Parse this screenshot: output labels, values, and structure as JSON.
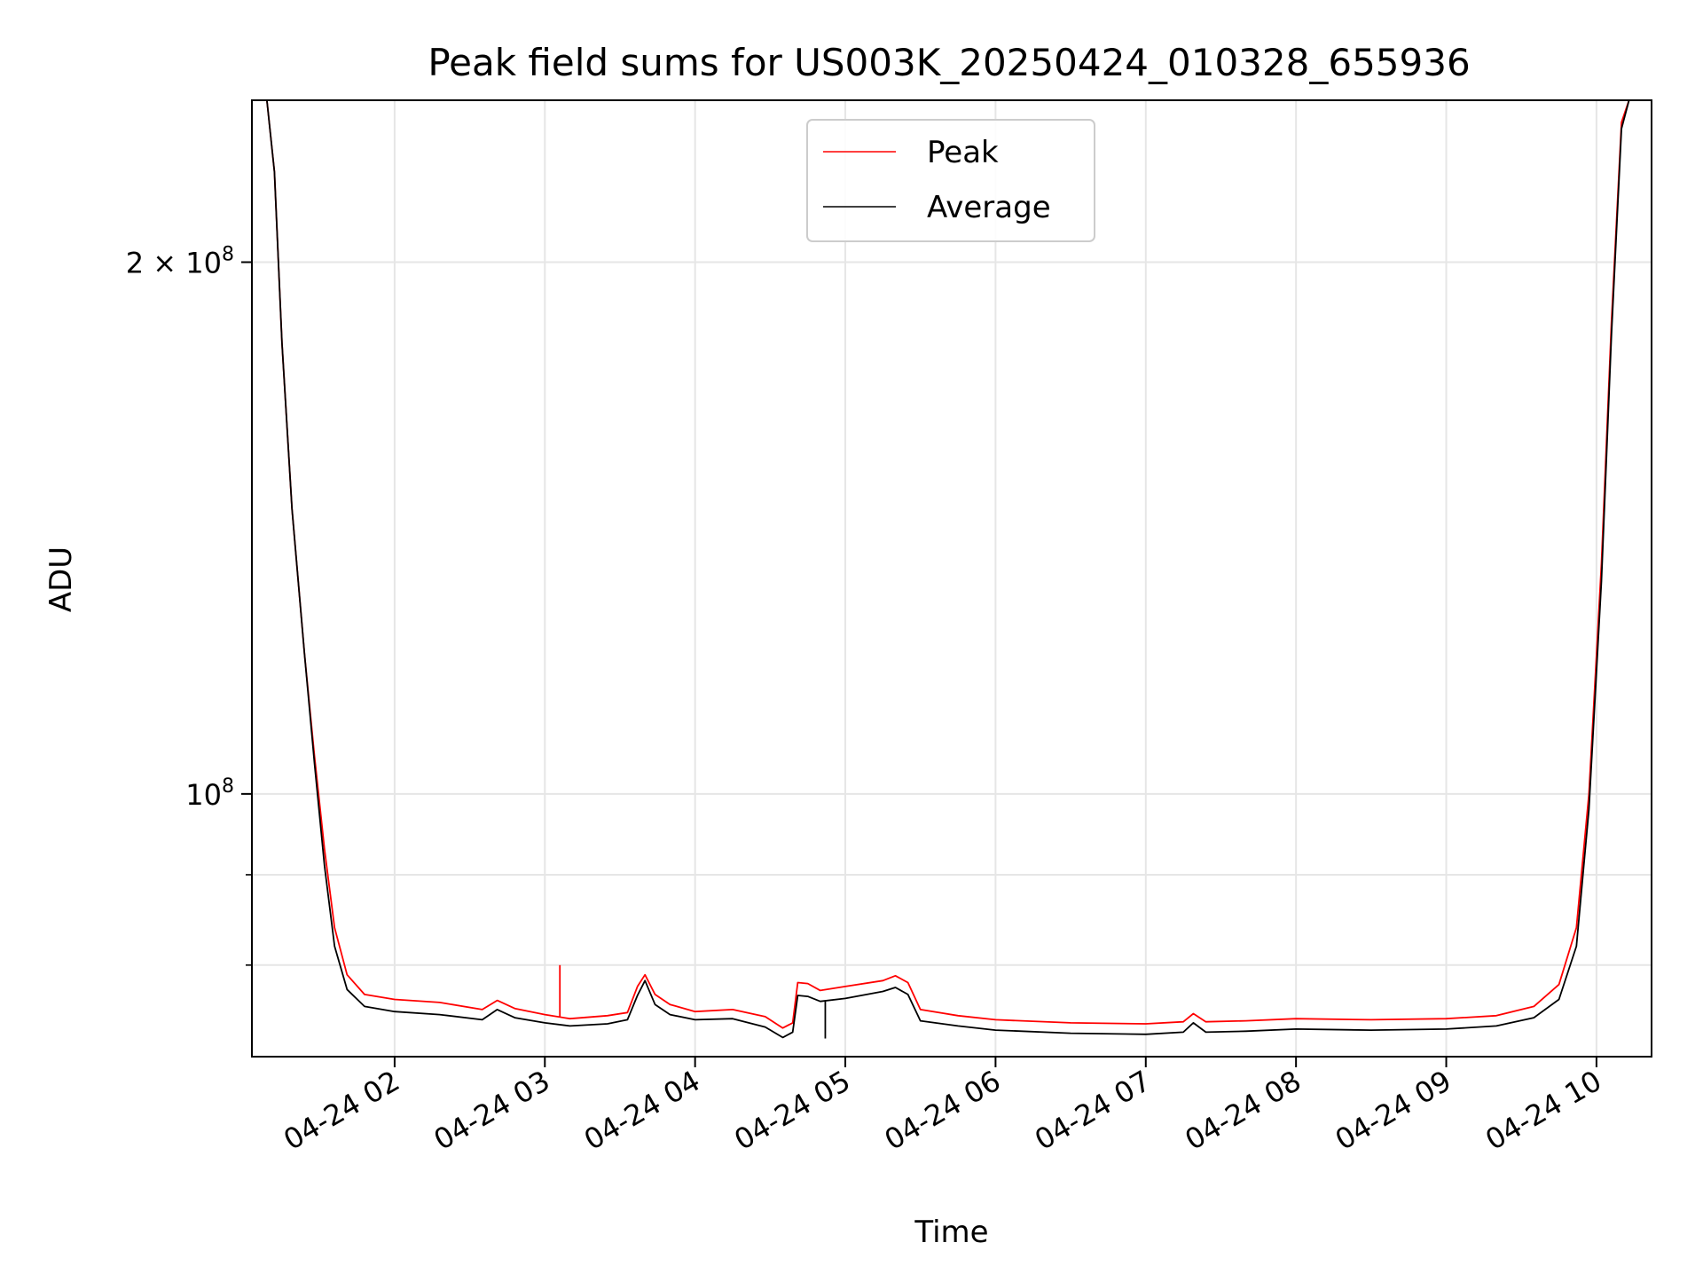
{
  "chart_data": {
    "type": "line",
    "title": "Peak field sums for US003K_20250424_010328_655936",
    "xlabel": "Time",
    "ylabel": "ADU",
    "y_scale": "log",
    "ylim": [
      71000000,
      247000000
    ],
    "xlim": [
      "04-24 01:03",
      "04-24 10:22"
    ],
    "grid": true,
    "legend_placement": "upper center",
    "x_ticks": [
      {
        "value": "04-24 02:00",
        "label": "04-24 02"
      },
      {
        "value": "04-24 03:00",
        "label": "04-24 03"
      },
      {
        "value": "04-24 04:00",
        "label": "04-24 04"
      },
      {
        "value": "04-24 05:00",
        "label": "04-24 05"
      },
      {
        "value": "04-24 06:00",
        "label": "04-24 06"
      },
      {
        "value": "04-24 07:00",
        "label": "04-24 07"
      },
      {
        "value": "04-24 08:00",
        "label": "04-24 08"
      },
      {
        "value": "04-24 09:00",
        "label": "04-24 09"
      },
      {
        "value": "04-24 10:00",
        "label": "04-24 10"
      }
    ],
    "y_ticks": [
      {
        "value": 200000000,
        "base": "2 × 10",
        "exp": "8"
      },
      {
        "value": 100000000,
        "base": "10",
        "exp": "8"
      }
    ],
    "y_minor_ticks": [
      90000000,
      80000000
    ],
    "series": [
      {
        "name": "Peak",
        "color": "#ff0000",
        "points": [
          [
            "04-24 01:03",
            247000000
          ],
          [
            "04-24 01:09",
            247000000
          ],
          [
            "04-24 01:12",
            225000000
          ],
          [
            "04-24 01:15",
            180000000
          ],
          [
            "04-24 01:19",
            145000000
          ],
          [
            "04-24 01:24",
            120000000
          ],
          [
            "04-24 01:28",
            105000000
          ],
          [
            "04-24 01:32",
            93000000
          ],
          [
            "04-24 01:36",
            84000000
          ],
          [
            "04-24 01:41",
            79000000
          ],
          [
            "04-24 01:48",
            77000000
          ],
          [
            "04-24 02:00",
            76500000
          ],
          [
            "04-24 02:18",
            76200000
          ],
          [
            "04-24 02:35",
            75500000
          ],
          [
            "04-24 02:41",
            76400000
          ],
          [
            "04-24 02:48",
            75600000
          ],
          [
            "04-24 03:00",
            75000000
          ],
          [
            "04-24 03:10",
            74600000
          ],
          [
            "04-24 03:25",
            74900000
          ],
          [
            "04-24 03:33",
            75200000
          ],
          [
            "04-24 03:37",
            77800000
          ],
          [
            "04-24 03:40",
            79000000
          ],
          [
            "04-24 03:44",
            77000000
          ],
          [
            "04-24 03:50",
            76000000
          ],
          [
            "04-24 04:00",
            75300000
          ],
          [
            "04-24 04:15",
            75500000
          ],
          [
            "04-24 04:28",
            74800000
          ],
          [
            "04-24 04:35",
            73700000
          ],
          [
            "04-24 04:39",
            74200000
          ],
          [
            "04-24 04:41",
            78200000
          ],
          [
            "04-24 04:45",
            78100000
          ],
          [
            "04-24 04:50",
            77400000
          ],
          [
            "04-24 05:00",
            77800000
          ],
          [
            "04-24 05:15",
            78400000
          ],
          [
            "04-24 05:20",
            78900000
          ],
          [
            "04-24 05:25",
            78200000
          ],
          [
            "04-24 05:30",
            75500000
          ],
          [
            "04-24 05:45",
            74900000
          ],
          [
            "04-24 06:00",
            74500000
          ],
          [
            "04-24 06:30",
            74200000
          ],
          [
            "04-24 07:00",
            74100000
          ],
          [
            "04-24 07:15",
            74300000
          ],
          [
            "04-24 07:19",
            75100000
          ],
          [
            "04-24 07:24",
            74300000
          ],
          [
            "04-24 07:40",
            74400000
          ],
          [
            "04-24 08:00",
            74600000
          ],
          [
            "04-24 08:30",
            74500000
          ],
          [
            "04-24 09:00",
            74600000
          ],
          [
            "04-24 09:20",
            74900000
          ],
          [
            "04-24 09:35",
            75800000
          ],
          [
            "04-24 09:45",
            78000000
          ],
          [
            "04-24 09:52",
            84000000
          ],
          [
            "04-24 09:57",
            100000000
          ],
          [
            "04-24 10:02",
            135000000
          ],
          [
            "04-24 10:06",
            185000000
          ],
          [
            "04-24 10:10",
            240000000
          ],
          [
            "04-24 10:13",
            247000000
          ],
          [
            "04-24 10:22",
            247000000
          ]
        ]
      },
      {
        "name": "Average",
        "color": "#000000",
        "points": [
          [
            "04-24 01:03",
            247000000
          ],
          [
            "04-24 01:09",
            247000000
          ],
          [
            "04-24 01:12",
            225000000
          ],
          [
            "04-24 01:15",
            180000000
          ],
          [
            "04-24 01:19",
            145000000
          ],
          [
            "04-24 01:24",
            120000000
          ],
          [
            "04-24 01:28",
            104000000
          ],
          [
            "04-24 01:32",
            91000000
          ],
          [
            "04-24 01:36",
            82000000
          ],
          [
            "04-24 01:41",
            77500000
          ],
          [
            "04-24 01:48",
            75800000
          ],
          [
            "04-24 02:00",
            75300000
          ],
          [
            "04-24 02:18",
            75000000
          ],
          [
            "04-24 02:35",
            74500000
          ],
          [
            "04-24 02:41",
            75500000
          ],
          [
            "04-24 02:48",
            74700000
          ],
          [
            "04-24 03:00",
            74200000
          ],
          [
            "04-24 03:10",
            73900000
          ],
          [
            "04-24 03:25",
            74100000
          ],
          [
            "04-24 03:33",
            74500000
          ],
          [
            "04-24 03:37",
            76900000
          ],
          [
            "04-24 03:40",
            78400000
          ],
          [
            "04-24 03:44",
            76000000
          ],
          [
            "04-24 03:50",
            75000000
          ],
          [
            "04-24 04:00",
            74500000
          ],
          [
            "04-24 04:15",
            74600000
          ],
          [
            "04-24 04:28",
            73800000
          ],
          [
            "04-24 04:35",
            72800000
          ],
          [
            "04-24 04:39",
            73300000
          ],
          [
            "04-24 04:41",
            76900000
          ],
          [
            "04-24 04:45",
            76800000
          ],
          [
            "04-24 04:50",
            76300000
          ],
          [
            "04-24 05:00",
            76600000
          ],
          [
            "04-24 05:15",
            77300000
          ],
          [
            "04-24 05:20",
            77700000
          ],
          [
            "04-24 05:25",
            77000000
          ],
          [
            "04-24 05:30",
            74400000
          ],
          [
            "04-24 05:45",
            73900000
          ],
          [
            "04-24 06:00",
            73500000
          ],
          [
            "04-24 06:30",
            73200000
          ],
          [
            "04-24 07:00",
            73100000
          ],
          [
            "04-24 07:15",
            73300000
          ],
          [
            "04-24 07:19",
            74200000
          ],
          [
            "04-24 07:24",
            73300000
          ],
          [
            "04-24 07:40",
            73400000
          ],
          [
            "04-24 08:00",
            73600000
          ],
          [
            "04-24 08:30",
            73500000
          ],
          [
            "04-24 09:00",
            73600000
          ],
          [
            "04-24 09:20",
            73900000
          ],
          [
            "04-24 09:35",
            74700000
          ],
          [
            "04-24 09:45",
            76500000
          ],
          [
            "04-24 09:52",
            82000000
          ],
          [
            "04-24 09:57",
            98000000
          ],
          [
            "04-24 10:02",
            132000000
          ],
          [
            "04-24 10:06",
            182000000
          ],
          [
            "04-24 10:10",
            238000000
          ],
          [
            "04-24 10:13",
            247000000
          ],
          [
            "04-24 10:22",
            247000000
          ]
        ]
      }
    ],
    "spikes": [
      {
        "series": "Peak",
        "x": "04-24 03:06",
        "y": 80000000
      },
      {
        "series": "Average",
        "x": "04-24 04:52",
        "y": 72700000
      }
    ]
  }
}
